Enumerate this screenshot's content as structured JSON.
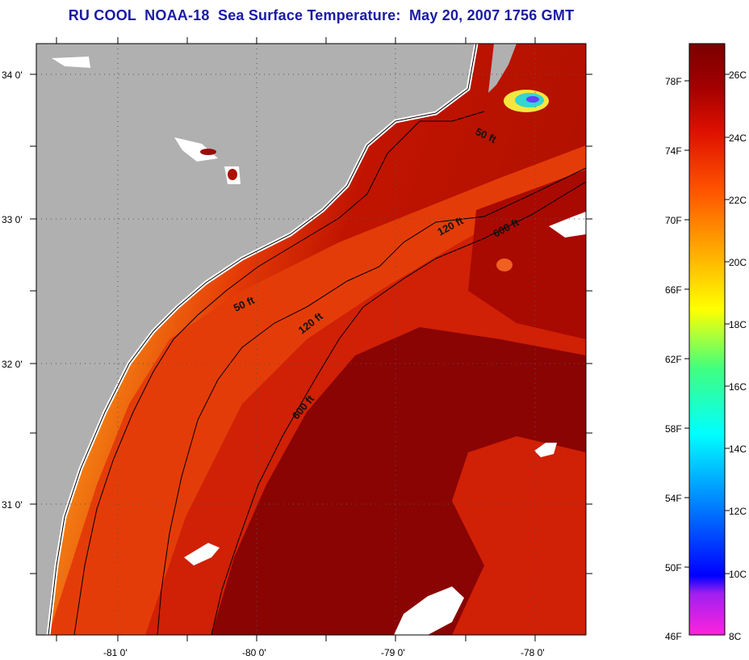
{
  "title": "RU COOL  NOAA-18  Sea Surface Temperature:  May 20, 2007 1756 GMT",
  "latitude_labels": [
    "34 0'",
    "33 0'",
    "32 0'",
    "31 0'"
  ],
  "longitude_labels": [
    "-81 0'",
    "-80 0'",
    "-79 0'",
    "-78 0'"
  ],
  "contour_labels": [
    "50 ft",
    "50 ft",
    "120 ft",
    "120 ft",
    "600 ft",
    "600 ft"
  ],
  "legend": {
    "fahrenheit_labels": [
      "78F",
      "74F",
      "70F",
      "66F",
      "62F",
      "58F",
      "54F",
      "50F",
      "46F"
    ],
    "celsius_labels": [
      "26C",
      "24C",
      "22C",
      "20C",
      "18C",
      "16C",
      "14C",
      "12C",
      "10C",
      "8C"
    ]
  },
  "colors": {
    "land": "#b0b0b0",
    "title": "#1a1aa6",
    "warm": "#7a0000",
    "mid": "#e23000",
    "shelf": "#f59a10"
  }
}
